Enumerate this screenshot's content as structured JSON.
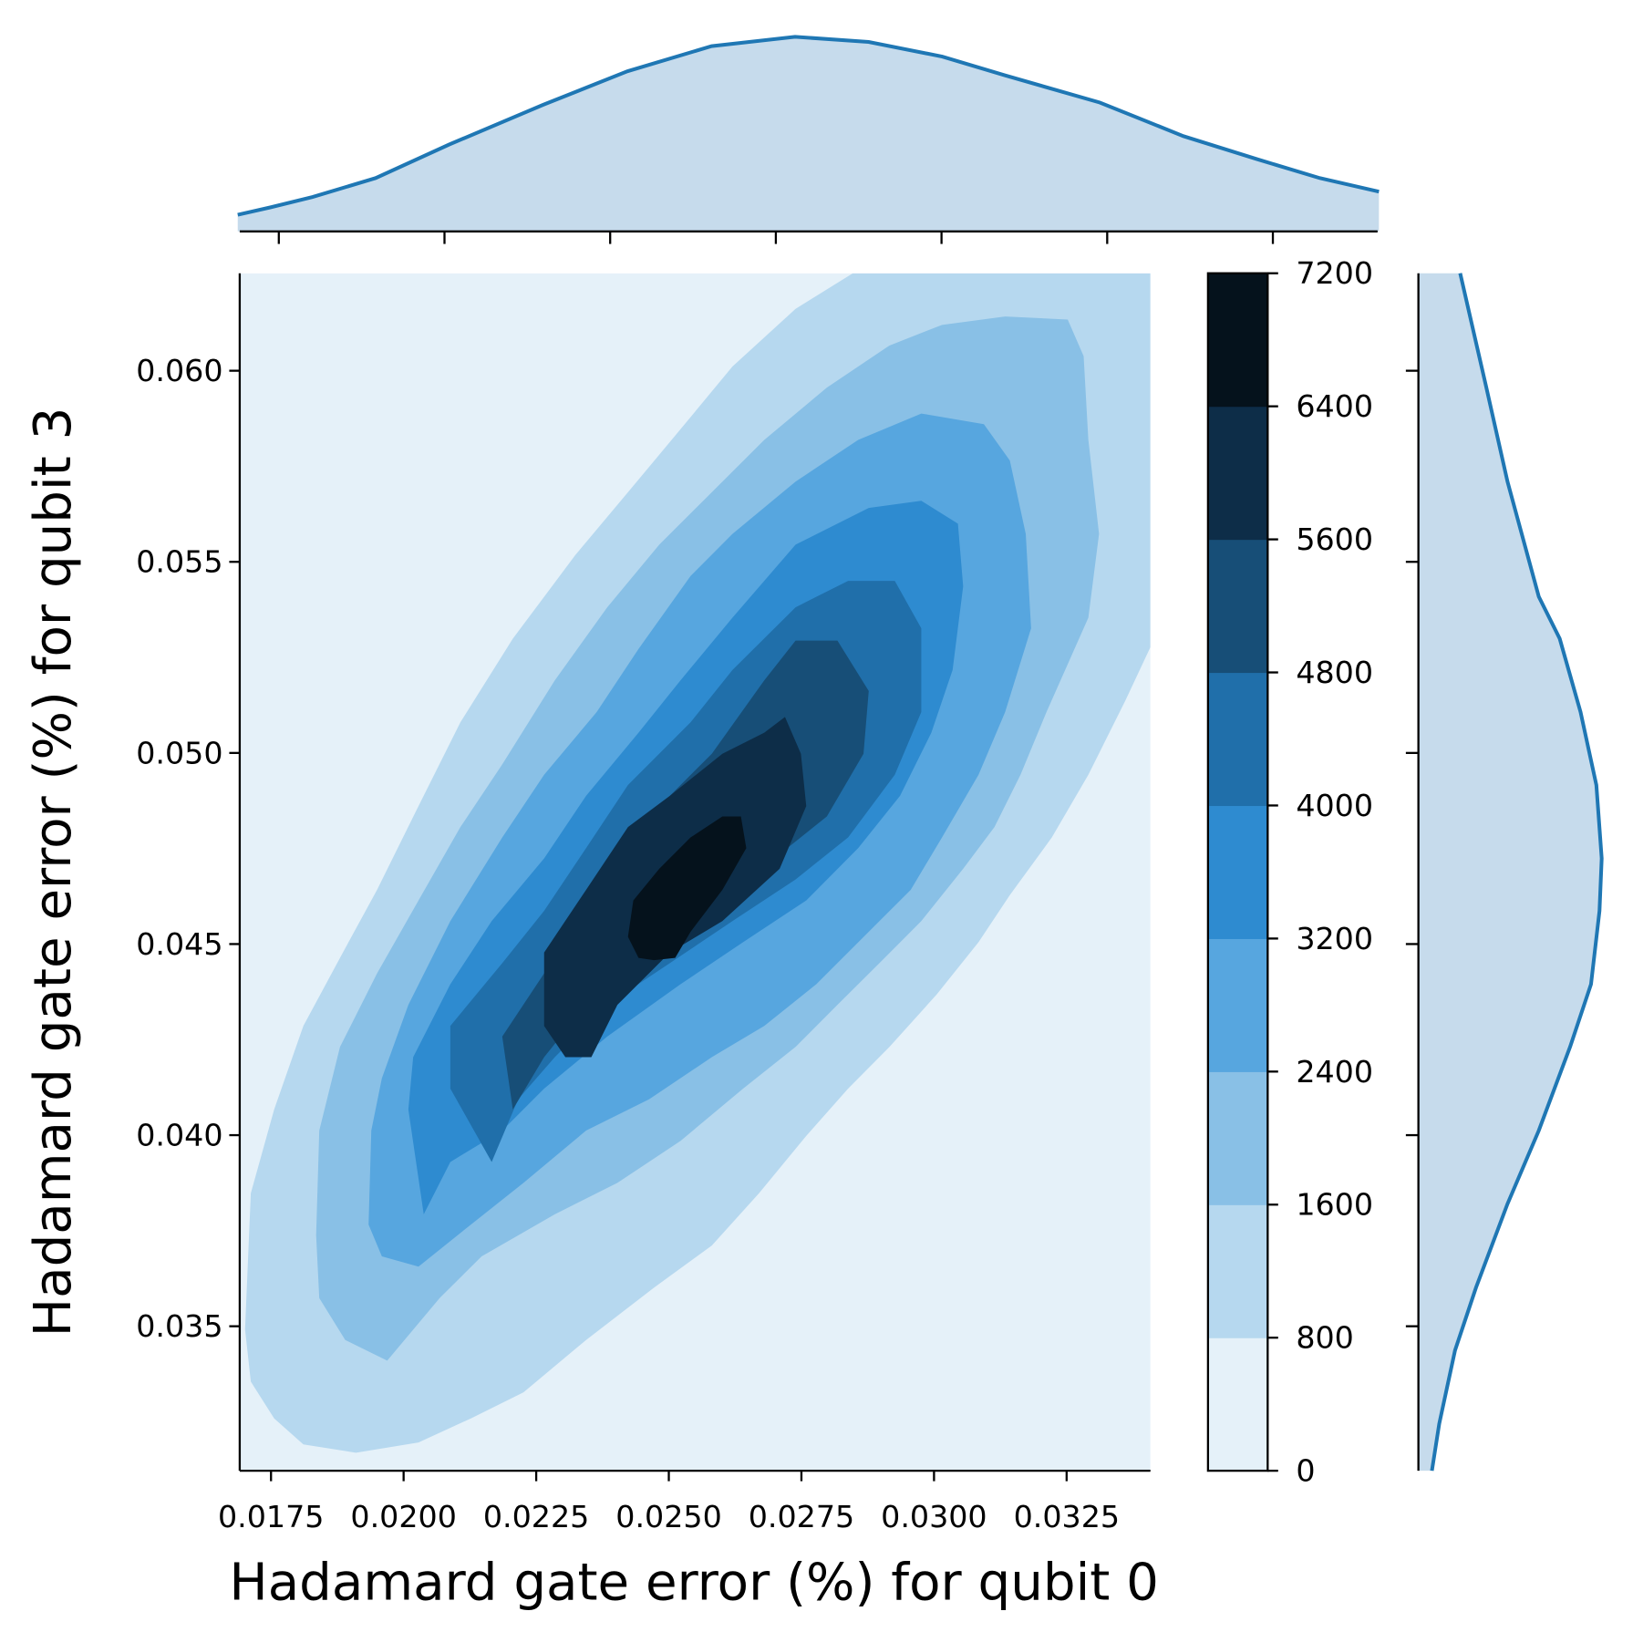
{
  "chart_data": {
    "type": "kde_joint",
    "xlabel": "Hadamard gate error (%) for qubit 0",
    "ylabel": "Hadamard gate error (%) for qubit 3",
    "xlim": [
      0.01691,
      0.03408
    ],
    "ylim": [
      0.03122,
      0.06255
    ],
    "xticks": [
      {
        "value": 0.0175,
        "label": "0.0175"
      },
      {
        "value": 0.02,
        "label": "0.0200"
      },
      {
        "value": 0.0225,
        "label": "0.0225"
      },
      {
        "value": 0.025,
        "label": "0.0250"
      },
      {
        "value": 0.0275,
        "label": "0.0275"
      },
      {
        "value": 0.03,
        "label": "0.0300"
      },
      {
        "value": 0.0325,
        "label": "0.0325"
      }
    ],
    "yticks": [
      0.035,
      {
        "value": 0.04,
        "label": "0.040"
      },
      0.045,
      {
        "value": 0.05,
        "label": "0.050"
      },
      0.055,
      {
        "value": 0.06,
        "label": "0.060"
      }
    ],
    "levels": [
      0,
      800,
      1600,
      2400,
      3200,
      4000,
      4800,
      5600,
      6400,
      7200
    ],
    "level_colors": [
      "#e5f1f9",
      "#b6d8ef",
      "#89c0e6",
      "#57a6df",
      "#2e8bd0",
      "#206faa",
      "#174e77",
      "#0d2d48",
      "#05121c"
    ],
    "contours": [
      {
        "x": [
          0.01701,
          0.01712,
          0.01756,
          0.01811,
          0.0188,
          0.0195,
          0.02028,
          0.02107,
          0.02206,
          0.02324,
          0.02423,
          0.02522,
          0.0262,
          0.02739,
          0.02847,
          0.03408,
          0.03408,
          0.0336,
          0.03291,
          0.03222,
          0.03143,
          0.03084,
          0.03005,
          0.02916,
          0.02838,
          0.02759,
          0.0267,
          0.02581,
          0.02472,
          0.02344,
          0.02226,
          0.02127,
          0.02028,
          0.0191,
          0.01811,
          0.01756,
          0.01712
        ],
        "y": [
          0.03492,
          0.03848,
          0.04067,
          0.04286,
          0.04464,
          0.04642,
          0.04861,
          0.0508,
          0.05299,
          0.05518,
          0.05682,
          0.05847,
          0.06011,
          0.06162,
          0.06255,
          0.06255,
          0.05277,
          0.05135,
          0.04943,
          0.04779,
          0.04628,
          0.04505,
          0.04368,
          0.04231,
          0.04122,
          0.03998,
          0.03848,
          0.03711,
          0.03601,
          0.03464,
          0.03327,
          0.03259,
          0.03196,
          0.03169,
          0.03191,
          0.03259,
          0.03355
        ]
      },
      {
        "x": [
          0.01835,
          0.01841,
          0.0188,
          0.0195,
          0.02028,
          0.02107,
          0.02186,
          0.02285,
          0.02384,
          0.02482,
          0.02581,
          0.0268,
          0.02798,
          0.02916,
          0.03015,
          0.03134,
          0.03252,
          0.03282,
          0.03291,
          0.03311,
          0.03291,
          0.03212,
          0.03163,
          0.03114,
          0.03055,
          0.02976,
          0.02897,
          0.02818,
          0.02739,
          0.0264,
          0.02522,
          0.02403,
          0.02285,
          0.02147,
          0.02068,
          0.01969,
          0.0189,
          0.01841
        ],
        "y": [
          0.03738,
          0.04012,
          0.04231,
          0.04423,
          0.04614,
          0.04806,
          0.0497,
          0.0519,
          0.05381,
          0.05545,
          0.05682,
          0.05819,
          0.05956,
          0.06066,
          0.0612,
          0.06142,
          0.06134,
          0.06038,
          0.05819,
          0.05573,
          0.05354,
          0.05107,
          0.04943,
          0.04806,
          0.04697,
          0.0456,
          0.0445,
          0.04341,
          0.04231,
          0.04122,
          0.03985,
          0.03875,
          0.03793,
          0.03683,
          0.03574,
          0.0341,
          0.03464,
          0.03574
        ]
      },
      {
        "x": [
          0.01934,
          0.01939,
          0.01959,
          0.02009,
          0.02088,
          0.02186,
          0.02265,
          0.02364,
          0.02443,
          0.02541,
          0.0262,
          0.02739,
          0.02857,
          0.02976,
          0.03094,
          0.03143,
          0.03173,
          0.03183,
          0.03134,
          0.03084,
          0.03015,
          0.02956,
          0.02877,
          0.02778,
          0.0268,
          0.02581,
          0.02463,
          0.02344,
          0.02226,
          0.02127,
          0.02028,
          0.01959
        ],
        "y": [
          0.03766,
          0.04012,
          0.04149,
          0.04341,
          0.0456,
          0.04779,
          0.04943,
          0.05107,
          0.05272,
          0.05463,
          0.05573,
          0.0571,
          0.05819,
          0.05888,
          0.0586,
          0.05765,
          0.05573,
          0.05326,
          0.05107,
          0.04943,
          0.04779,
          0.04642,
          0.04532,
          0.04395,
          0.04286,
          0.04204,
          0.04094,
          0.04012,
          0.03875,
          0.03766,
          0.03656,
          0.03683
        ]
      },
      {
        "x": [
          0.02038,
          0.02009,
          0.02018,
          0.02088,
          0.02166,
          0.02265,
          0.02344,
          0.02443,
          0.02522,
          0.0262,
          0.02739,
          0.02877,
          0.02976,
          0.03045,
          0.03055,
          0.03035,
          0.02995,
          0.02936,
          0.02857,
          0.02759,
          0.0264,
          0.02522,
          0.02384,
          0.02265,
          0.02186,
          0.02088
        ],
        "y": [
          0.03793,
          0.04067,
          0.04204,
          0.04395,
          0.0456,
          0.04724,
          0.04888,
          0.05053,
          0.0519,
          0.05354,
          0.05545,
          0.05641,
          0.0566,
          0.056,
          0.05436,
          0.05217,
          0.05053,
          0.04888,
          0.04751,
          0.04614,
          0.04505,
          0.04395,
          0.04258,
          0.04122,
          0.04012,
          0.0393
        ]
      },
      {
        "x": [
          0.02166,
          0.02088,
          0.02088,
          0.02186,
          0.02265,
          0.02344,
          0.02423,
          0.02541,
          0.0262,
          0.02739,
          0.02838,
          0.02926,
          0.02976,
          0.02976,
          0.02926,
          0.02838,
          0.02739,
          0.0262,
          0.02502,
          0.02384,
          0.02285,
          0.02216
        ],
        "y": [
          0.0393,
          0.04122,
          0.04286,
          0.0445,
          0.04587,
          0.04751,
          0.04916,
          0.0508,
          0.05217,
          0.05381,
          0.0545,
          0.0545,
          0.05326,
          0.05107,
          0.04943,
          0.04779,
          0.04669,
          0.0456,
          0.0445,
          0.04341,
          0.04204,
          0.04094
        ]
      },
      {
        "x": [
          0.02206,
          0.02186,
          0.02265,
          0.02344,
          0.02403,
          0.02502,
          0.02581,
          0.0268,
          0.02739,
          0.02818,
          0.02877,
          0.02867,
          0.02798,
          0.02699,
          0.02581,
          0.02463,
          0.02344,
          0.02265
        ],
        "y": [
          0.04067,
          0.04258,
          0.04423,
          0.0456,
          0.04697,
          0.04888,
          0.04998,
          0.0519,
          0.05294,
          0.05294,
          0.05162,
          0.04998,
          0.04834,
          0.04724,
          0.04614,
          0.04478,
          0.04341,
          0.04204
        ]
      },
      {
        "x": [
          0.02305,
          0.02265,
          0.02265,
          0.02344,
          0.02423,
          0.02502,
          0.02601,
          0.0268,
          0.02719,
          0.02749,
          0.02759,
          0.02709,
          0.02601,
          0.02502,
          0.02403,
          0.02354
        ],
        "y": [
          0.04204,
          0.04286,
          0.04478,
          0.04642,
          0.04806,
          0.04888,
          0.04998,
          0.05053,
          0.05094,
          0.04998,
          0.04861,
          0.04697,
          0.0456,
          0.04478,
          0.04341,
          0.04204
        ]
      },
      {
        "x": [
          0.02443,
          0.02423,
          0.02433,
          0.02482,
          0.02541,
          0.02601,
          0.02636,
          0.02646,
          0.02601,
          0.02541,
          0.02512,
          0.02472
        ],
        "y": [
          0.04464,
          0.04519,
          0.04614,
          0.04697,
          0.04779,
          0.04834,
          0.04834,
          0.04751,
          0.04642,
          0.04532,
          0.04464,
          0.04458
        ]
      }
    ],
    "marginal_x": {
      "x": [
        0.01688,
        0.01737,
        0.01801,
        0.01896,
        0.02007,
        0.02149,
        0.02276,
        0.02403,
        0.02529,
        0.0264,
        0.02751,
        0.02846,
        0.02989,
        0.03115,
        0.03226,
        0.03321,
        0.0341
      ],
      "density": [
        7.5,
        10.8,
        15.5,
        24.0,
        39.1,
        57.0,
        72.1,
        83.4,
        87.6,
        85.3,
        78.7,
        70.2,
        58.0,
        42.9,
        32.5,
        24.0,
        17.9
      ]
    },
    "marginal_y": {
      "y": [
        0.03122,
        0.03245,
        0.03437,
        0.03601,
        0.0382,
        0.04012,
        0.04231,
        0.04395,
        0.04587,
        0.04724,
        0.04916,
        0.05107,
        0.05299,
        0.05409,
        0.0571,
        0.05956,
        0.06255
      ],
      "density": [
        6.1,
        9.4,
        16.5,
        25.9,
        40.1,
        54.2,
        68.3,
        77.7,
        81.5,
        82.5,
        80.1,
        73.0,
        63.6,
        54.2,
        40.1,
        30.6,
        18.8
      ]
    },
    "marginal_density_lim": [
      0,
      90
    ],
    "line_color": "#1f77b4",
    "fill_color": "#c6dbec"
  }
}
